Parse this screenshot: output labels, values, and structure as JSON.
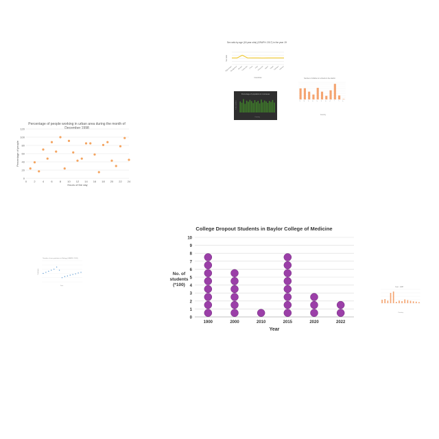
{
  "chart_data": [
    {
      "id": "c1",
      "type": "line",
      "title": "Sex ratio by age (18 year olds) (GRAPH: 2017) in the year 1992",
      "xlabel": "Countries",
      "ylabel": "Sex ratio",
      "x": [
        "Afghanistan",
        "Bangladesh",
        "Bhutan",
        "Cambodia",
        "China",
        "India",
        "Indonesia",
        "Japan",
        "Nepal",
        "Pakistan",
        "Vietnam"
      ],
      "values": [
        1.05,
        1.06,
        1.5,
        1.07,
        1.06,
        1.05,
        1.04,
        1.05,
        1.05,
        1.05,
        1.05
      ],
      "ylim": [
        0,
        2
      ],
      "colors": {
        "series": "#f0c419",
        "grid": "#dddddd"
      }
    },
    {
      "id": "c2",
      "type": "bar",
      "title": "Percentage of population in rural areas",
      "xlabel": "Country",
      "ylabel": "% of population",
      "values": [
        70,
        62,
        85,
        55,
        75,
        68,
        80,
        72,
        60,
        78,
        66,
        74,
        58,
        82,
        64,
        76,
        70,
        61,
        73,
        67,
        79,
        63
      ],
      "ylim": [
        0,
        100
      ],
      "colors": {
        "bg": "#2e2e2e",
        "bar": "#3f7d2a"
      }
    },
    {
      "id": "c3",
      "type": "bar",
      "title": "Number of children in schools in the district",
      "xlabel": "Country",
      "ylabel": "",
      "categories": [
        "A",
        "B",
        "C",
        "D",
        "E",
        "F",
        "G",
        "H",
        "I",
        "J",
        "K"
      ],
      "values": [
        5.8,
        5.9,
        4.1,
        2.6,
        6.1,
        4.1,
        1.9,
        4.8,
        8.2,
        2.1,
        0.2
      ],
      "ylim": [
        0,
        9
      ],
      "colors": {
        "bar": "#f4a470"
      }
    },
    {
      "id": "c4",
      "type": "scatter",
      "title": "Percentage of people working in urban area during the month of December 1998",
      "xlabel": "Hours of the day",
      "ylabel": "Percentage of people",
      "x": [
        1,
        2,
        3,
        4,
        5,
        6,
        7,
        8,
        9,
        10,
        11,
        12,
        13,
        14,
        15,
        16,
        17,
        18,
        19,
        20,
        21,
        22,
        23,
        24
      ],
      "y": [
        24,
        39,
        17,
        70,
        48,
        88,
        65,
        100,
        24,
        91,
        63,
        43,
        48,
        85,
        85,
        58,
        15,
        81,
        88,
        43,
        30,
        78,
        98,
        45
      ],
      "xlim": [
        0,
        24
      ],
      "ylim": [
        0,
        120
      ],
      "xticks": [
        "0",
        "2",
        "4",
        "6",
        "8",
        "10",
        "12",
        "14",
        "16",
        "18",
        "20",
        "22",
        "24"
      ],
      "yticks": [
        "0",
        "20",
        "40",
        "60",
        "80",
        "100",
        "120"
      ],
      "colors": {
        "point": "#f4a460",
        "grid": "#e2e2e2"
      }
    },
    {
      "id": "c5",
      "type": "scatter",
      "title": "Number of new graduates in Biology (GRAPH: 2018)",
      "xlabel": "Year",
      "ylabel": "Graduates",
      "x": [
        1,
        2,
        3,
        4,
        5,
        6,
        7,
        8,
        9,
        10,
        11,
        12,
        13,
        14,
        15
      ],
      "y": [
        40,
        45,
        50,
        55,
        60,
        70,
        55,
        20,
        25,
        28,
        32,
        35,
        38,
        42,
        45
      ],
      "ylim": [
        0,
        100
      ],
      "colors": {
        "point": "#5b9bd5"
      }
    },
    {
      "id": "c6",
      "type": "scatter",
      "title": "College Dropout Students in Baylor College of Medicine",
      "xlabel": "Year",
      "ylabel": "No. of students (*100)",
      "ylabel_lines": [
        "No. of",
        "students",
        "(*100)"
      ],
      "categories": [
        "1900",
        "2000",
        "2010",
        "2015",
        "2020",
        "2022"
      ],
      "values": [
        8,
        6,
        1,
        8,
        3,
        2
      ],
      "ylim": [
        0,
        10
      ],
      "yticks": [
        "0",
        "1",
        "2",
        "3",
        "4",
        "5",
        "6",
        "7",
        "8",
        "9",
        "10"
      ],
      "colors": {
        "dot": "#9b3fa8",
        "dot_stroke": "#6e2a7a",
        "grid": "#d9d9d9"
      }
    },
    {
      "id": "c7",
      "type": "bar",
      "title": "Year - GDP",
      "xlabel": "Country",
      "ylabel": "",
      "values": [
        2,
        2.4,
        1.5,
        6,
        6.8,
        0.8,
        1.5,
        1.2,
        2.2,
        1.8,
        1.4,
        1.1,
        0.9,
        0.6
      ],
      "ylim": [
        0,
        8
      ],
      "colors": {
        "bar": "#f4a470"
      }
    }
  ]
}
